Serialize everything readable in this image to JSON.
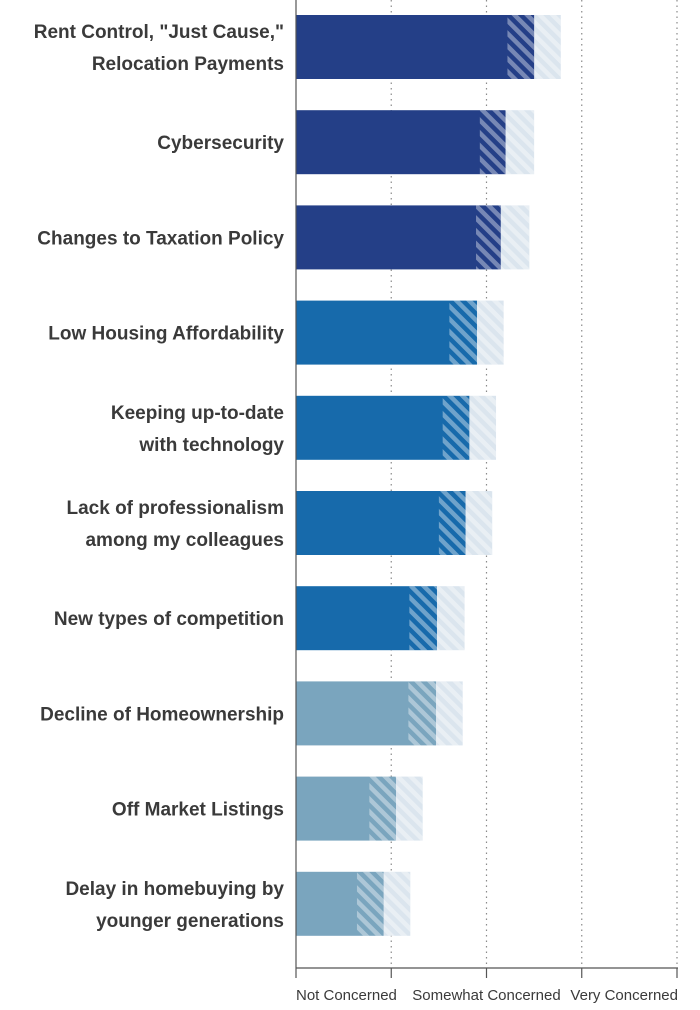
{
  "chart_data": {
    "type": "bar",
    "orientation": "horizontal",
    "categories": [
      [
        "Rent Control, \"Just Cause,\"",
        "Relocation Payments"
      ],
      [
        "Cybersecurity"
      ],
      [
        "Changes to Taxation Policy"
      ],
      [
        "Low Housing Affordability"
      ],
      [
        "Keeping up-to-date",
        "with technology"
      ],
      [
        "Lack of professionalism",
        "among my colleagues"
      ],
      [
        "New types of competition"
      ],
      [
        "Decline of Homeownership"
      ],
      [
        "Off Market Listings"
      ],
      [
        "Delay in homebuying by",
        "younger generations"
      ]
    ],
    "values": [
      2.5,
      2.2,
      2.15,
      1.9,
      1.82,
      1.78,
      1.48,
      1.47,
      1.05,
      0.92
    ],
    "range_low": [
      2.22,
      1.93,
      1.89,
      1.61,
      1.54,
      1.5,
      1.19,
      1.18,
      0.77,
      0.64
    ],
    "range_high": [
      2.78,
      2.5,
      2.45,
      2.18,
      2.1,
      2.06,
      1.77,
      1.75,
      1.33,
      1.2
    ],
    "colors": [
      "#243f87",
      "#243f87",
      "#243f87",
      "#176aab",
      "#176aab",
      "#176aab",
      "#176aab",
      "#7aa5be",
      "#7aa5be",
      "#7aa5be"
    ],
    "band_color": "#dbe5ee",
    "xlim": [
      0,
      4
    ],
    "x_tick_values": [
      0,
      1,
      2,
      3,
      4
    ],
    "x_tick_labels": [
      "Not Concerned",
      "",
      "Somewhat Concerned",
      "",
      "Very Concerned"
    ],
    "grid": "dotted vertical",
    "legend": "none"
  }
}
